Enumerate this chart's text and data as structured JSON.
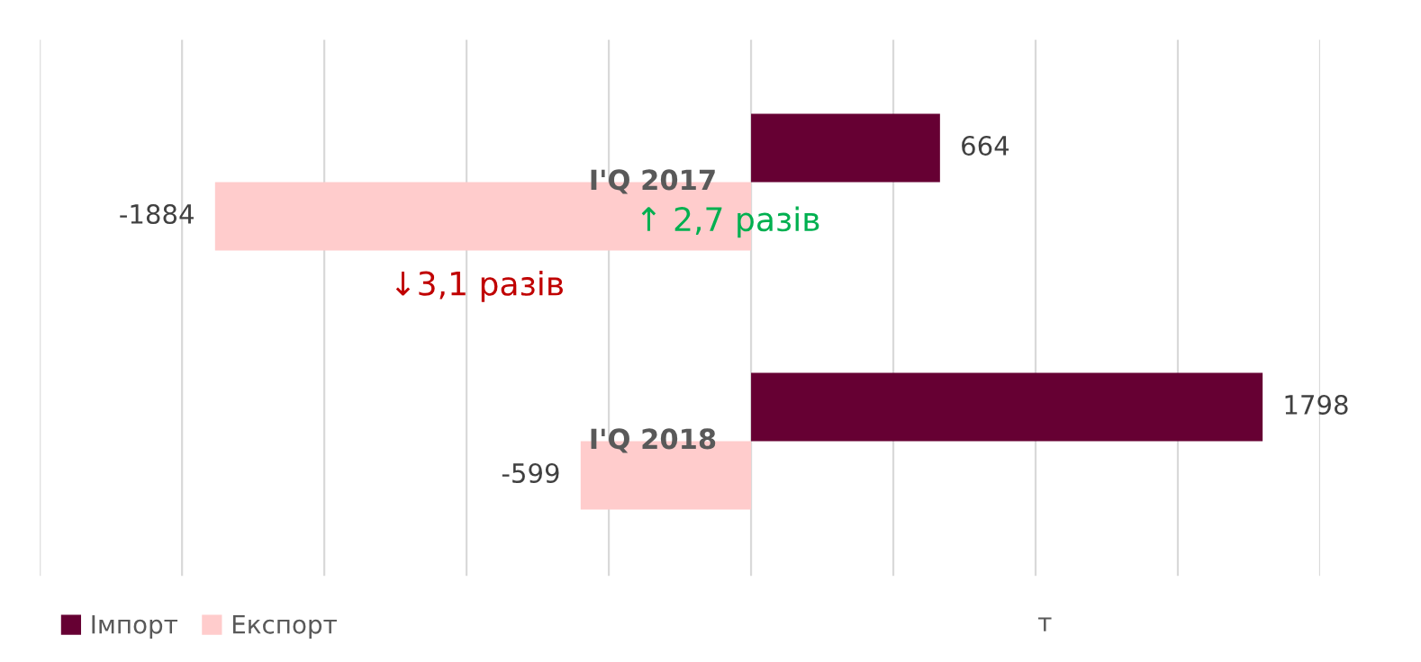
{
  "chart_data": {
    "type": "bar",
    "orientation": "horizontal",
    "categories": [
      "I'Q 2017",
      "I'Q 2018"
    ],
    "series": [
      {
        "name": "Імпорт",
        "color": "#660033",
        "values": [
          664,
          1798
        ]
      },
      {
        "name": "Експорт",
        "color": "#ffcccc",
        "values": [
          -1884,
          -599
        ]
      }
    ],
    "xlim": [
      -2500,
      2000
    ],
    "xticks": [
      {
        "value": -2500,
        "label": null
      },
      {
        "value": -2000,
        "label": null
      },
      {
        "value": -1500,
        "label": null
      },
      {
        "value": -1000,
        "label": null
      },
      {
        "value": -500,
        "label": null
      },
      {
        "value": 0,
        "label": null
      },
      {
        "value": 500,
        "label": null
      },
      {
        "value": 1000,
        "label": null
      },
      {
        "value": 1500,
        "label": null
      },
      {
        "value": 2000,
        "label": null
      }
    ],
    "grid": "x",
    "legend": "bottom left",
    "data_labels": true,
    "annotations": [
      "↑ 2,7 разів",
      "↓3,1 разів",
      "т"
    ]
  }
}
